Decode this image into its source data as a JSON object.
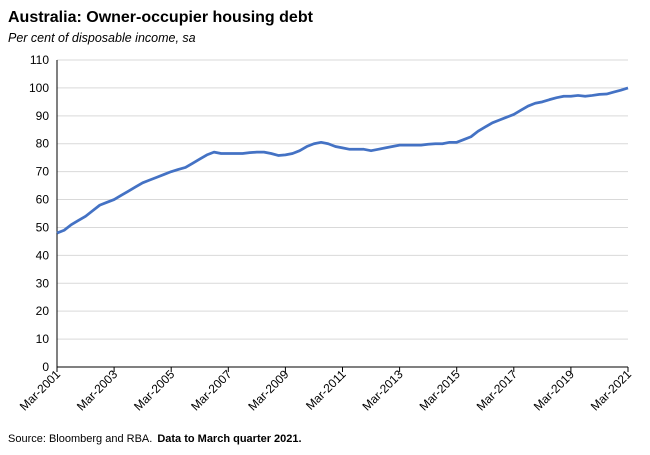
{
  "chart_data": {
    "type": "line",
    "title": "Australia: Owner-occupier housing debt",
    "subtitle": "Per cent of disposable income, sa",
    "source": "Source: Bloomberg and RBA.",
    "note": "Data to March quarter 2021.",
    "categories": [
      "Mar-2001",
      null,
      null,
      null,
      null,
      null,
      null,
      null,
      "Mar-2003",
      null,
      null,
      null,
      null,
      null,
      null,
      null,
      "Mar-2005",
      null,
      null,
      null,
      null,
      null,
      null,
      null,
      "Mar-2007",
      null,
      null,
      null,
      null,
      null,
      null,
      null,
      "Mar-2009",
      null,
      null,
      null,
      null,
      null,
      null,
      null,
      "Mar-2011",
      null,
      null,
      null,
      null,
      null,
      null,
      null,
      "Mar-2013",
      null,
      null,
      null,
      null,
      null,
      null,
      null,
      "Mar-2015",
      null,
      null,
      null,
      null,
      null,
      null,
      null,
      "Mar-2017",
      null,
      null,
      null,
      null,
      null,
      null,
      null,
      "Mar-2019",
      null,
      null,
      null,
      null,
      null,
      null,
      null,
      "Mar-2021"
    ],
    "series": [
      {
        "name": "Owner-occupier housing debt",
        "color": "#4472c4",
        "values": [
          48,
          49,
          51,
          52.5,
          54,
          56,
          58,
          59,
          60,
          61.5,
          63,
          64.5,
          66,
          67,
          68,
          69,
          70,
          70.8,
          71.5,
          73,
          74.5,
          76,
          77,
          76.5,
          76.5,
          76.5,
          76.5,
          76.8,
          77,
          77,
          76.5,
          75.8,
          76,
          76.5,
          77.5,
          79,
          80,
          80.5,
          80,
          79,
          78.5,
          78,
          78,
          78,
          77.5,
          78,
          78.5,
          79,
          79.5,
          79.5,
          79.5,
          79.5,
          79.8,
          80,
          80,
          80.5,
          80.5,
          81.5,
          82.5,
          84.5,
          86,
          87.5,
          88.5,
          89.5,
          90.5,
          92,
          93.5,
          94.5,
          95,
          95.8,
          96.5,
          97,
          97,
          97.3,
          97,
          97.3,
          97.7,
          97.8,
          98.5,
          99.2,
          100
        ]
      }
    ],
    "ylim": [
      0,
      110
    ],
    "yticks": [
      0,
      10,
      20,
      30,
      40,
      50,
      60,
      70,
      80,
      90,
      100,
      110
    ],
    "grid": true
  }
}
